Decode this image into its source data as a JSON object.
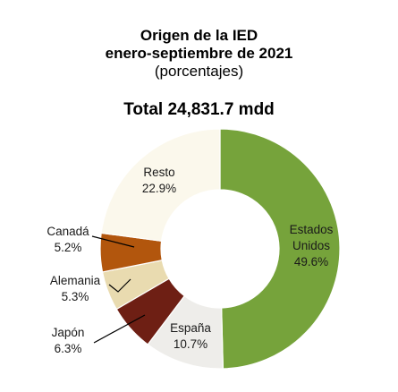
{
  "title": {
    "line1": "Origen de la IED",
    "line2": "enero-septiembre de 2021",
    "line3": "(porcentajes)"
  },
  "total": "Total 24,831.7 mdd",
  "chart_data": {
    "type": "pie",
    "donut": true,
    "categories": [
      "Estados Unidos",
      "España",
      "Japón",
      "Alemania",
      "Canadá",
      "Resto"
    ],
    "values": [
      49.6,
      10.7,
      6.3,
      5.3,
      5.2,
      22.9
    ],
    "value_labels": [
      "49.6%",
      "10.7%",
      "6.3%",
      "5.3%",
      "5.2%",
      "22.9%"
    ],
    "label_lines": [
      [
        "Estados",
        "Unidos"
      ],
      [
        "España"
      ],
      [
        "Japón"
      ],
      [
        "Alemania"
      ],
      [
        "Canadá"
      ],
      [
        "Resto"
      ]
    ],
    "colors": [
      "#76a33b",
      "#eeedea",
      "#6e1f14",
      "#e9dbb0",
      "#b2560d",
      "#fbf8ec"
    ],
    "title": "Origen de la IED"
  }
}
